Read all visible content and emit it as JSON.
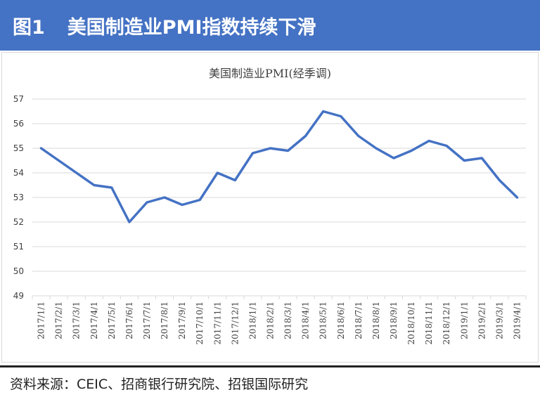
{
  "header": {
    "figure_label": "图1",
    "title": "美国制造业PMI指数持续下滑"
  },
  "footer": {
    "source": "资料来源：CEIC、招商银行研究院、招银国际研究"
  },
  "colors": {
    "header_bg": "#4472c4",
    "line": "#4472c4",
    "grid": "#d9d9d9"
  },
  "chart_data": {
    "type": "line",
    "title": "美国制造业PMI(经季调)",
    "xlabel": "",
    "ylabel": "",
    "ylim": [
      49,
      57
    ],
    "yticks": [
      49,
      50,
      51,
      52,
      53,
      54,
      55,
      56,
      57
    ],
    "grid": true,
    "legend": "none",
    "categories": [
      "2017/1/1",
      "2017/2/1",
      "2017/3/1",
      "2017/4/1",
      "2017/5/1",
      "2017/6/1",
      "2017/7/1",
      "2017/8/1",
      "2017/9/1",
      "2017/10/1",
      "2017/11/1",
      "2017/12/1",
      "2018/1/1",
      "2018/2/1",
      "2018/3/1",
      "2018/4/1",
      "2018/5/1",
      "2018/6/1",
      "2018/7/1",
      "2018/8/1",
      "2018/9/1",
      "2018/10/1",
      "2018/11/1",
      "2018/12/1",
      "2019/1/1",
      "2019/2/1",
      "2019/3/1",
      "2019/4/1"
    ],
    "series": [
      {
        "values": [
          55.0,
          54.5,
          54.0,
          53.5,
          53.4,
          52.0,
          52.8,
          53.0,
          52.7,
          52.9,
          54.0,
          53.7,
          54.8,
          55.0,
          54.9,
          55.5,
          56.5,
          56.3,
          55.5,
          55.0,
          54.6,
          54.9,
          55.3,
          55.1,
          54.5,
          54.6,
          53.7,
          53.0
        ]
      }
    ]
  }
}
